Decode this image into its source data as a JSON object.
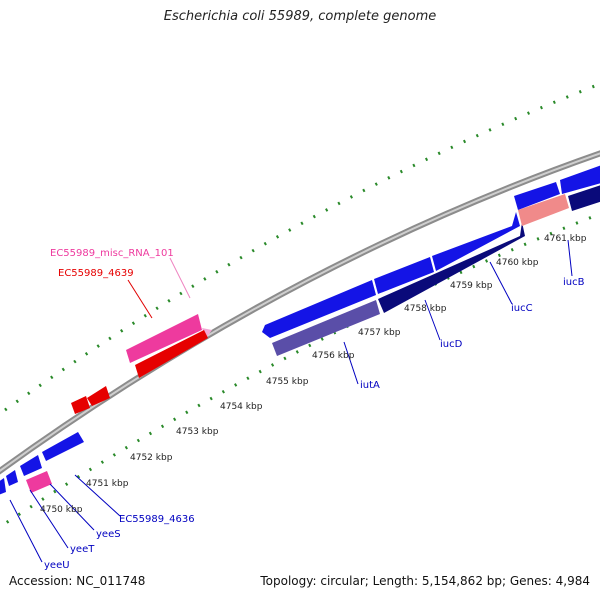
{
  "title": "Escherichia coli 55989, complete genome",
  "footer": {
    "accession": "Accession: NC_011748",
    "summary": "Topology: circular; Length: 5,154,862 bp; Genes: 4,984"
  },
  "colors": {
    "backbone": "#8c8c8c",
    "tick": "#2a8a2a",
    "cds_plus": "#1414e6",
    "cds_dark": "#0a0a7a",
    "cds_faded": "#5a4ea8",
    "gene_red": "#e60000",
    "misc_rna": "#ee3a9e",
    "pink_light": "#f08a8a",
    "label_blue": "#0000c0",
    "label_red": "#e00000",
    "label_pink": "#ee82c0"
  },
  "ticks": [
    {
      "label": "4750 kbp"
    },
    {
      "label": "4751 kbp"
    },
    {
      "label": "4752 kbp"
    },
    {
      "label": "4753 kbp"
    },
    {
      "label": "4754 kbp"
    },
    {
      "label": "4755 kbp"
    },
    {
      "label": "4756 kbp"
    },
    {
      "label": "4757 kbp"
    },
    {
      "label": "4758 kbp"
    },
    {
      "label": "4759 kbp"
    },
    {
      "label": "4760 kbp"
    },
    {
      "label": "4761 kbp"
    }
  ],
  "gene_labels": [
    {
      "text": "EC55989_misc_RNA_101",
      "kind": "misc_rna"
    },
    {
      "text": "EC55989_4639",
      "kind": "gene_red"
    },
    {
      "text": "iucB",
      "kind": "label_blue"
    },
    {
      "text": "iucC",
      "kind": "label_blue"
    },
    {
      "text": "iucD",
      "kind": "label_blue"
    },
    {
      "text": "iutA",
      "kind": "label_blue"
    },
    {
      "text": "EC55989_4636",
      "kind": "label_blue"
    },
    {
      "text": "yeeS",
      "kind": "label_blue"
    },
    {
      "text": "yeeT",
      "kind": "label_blue"
    },
    {
      "text": "yeeU",
      "kind": "label_blue"
    }
  ]
}
